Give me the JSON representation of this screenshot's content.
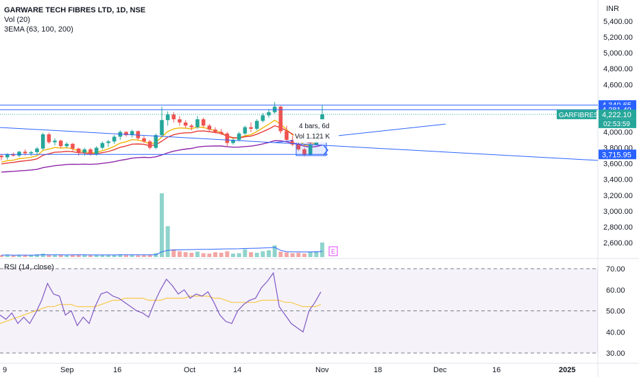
{
  "header": {
    "title": "GARWARE TECH FIBRES LTD, 1D, NSE",
    "vol_label": "Vol (20)",
    "ema_label": "3EMA (63, 100, 200)",
    "currency": "INR",
    "rsi_label": "RSI (14, close)"
  },
  "price_axis": {
    "ticks": [
      "5,400.00",
      "5,200.00",
      "5,000.00",
      "4,800.00",
      "4,600.00",
      "4,000.00",
      "3,800.00",
      "3,600.00",
      "3,400.00",
      "3,200.00",
      "3,000.00",
      "2,800.00",
      "2,600.00"
    ],
    "tick_values": [
      5400,
      5200,
      5000,
      4800,
      4600,
      4000,
      3800,
      3600,
      3400,
      3200,
      3000,
      2800,
      2600
    ]
  },
  "markers": {
    "price_high": {
      "text": "4,340.65",
      "value": 4340.65,
      "color": "#2962ff"
    },
    "price_mid": {
      "text": "4,281.40",
      "value": 4281.4,
      "color": "#2962ff"
    },
    "symbol": "GARFIBRES",
    "last": {
      "text": "4,222.10",
      "value": 4222.1,
      "color": "#26a69a"
    },
    "countdown": "02:53:59",
    "line_level": {
      "text": "3,715.95",
      "value": 3715.95,
      "color": "#2962ff"
    }
  },
  "tooltip": {
    "bars": "4 bars, 6d",
    "vol": "Vol 1.121 K"
  },
  "earnings_badge": "E",
  "rsi_axis": {
    "ticks": [
      "70.00",
      "60.00",
      "50.00",
      "40.00",
      "30.00"
    ],
    "tick_values": [
      70,
      60,
      50,
      40,
      30
    ]
  },
  "time_axis": {
    "labels": [
      "9",
      "Sep",
      "16",
      "Oct",
      "14",
      "Nov",
      "18",
      "Dec",
      "16",
      "2025"
    ]
  },
  "colors": {
    "up": "#26a69a",
    "down": "#ef5350",
    "ema63": "#f0b400",
    "ema100": "#e53935",
    "ema200": "#8e24aa",
    "rsi": "#7e57c2",
    "rsi_ma": "#f7c948",
    "trend": "#2962ff"
  },
  "chart_data": [
    {
      "type": "candlestick",
      "title": "GARWARE TECH FIBRES LTD, 1D, NSE",
      "series": [
        {
          "name": "price",
          "candles": [
            [
              3700,
              3720,
              3640,
              3680
            ],
            [
              3680,
              3730,
              3650,
              3720
            ],
            [
              3720,
              3740,
              3690,
              3700
            ],
            [
              3700,
              3760,
              3680,
              3750
            ],
            [
              3750,
              3780,
              3700,
              3730
            ],
            [
              3730,
              3760,
              3700,
              3745
            ],
            [
              3745,
              3810,
              3720,
              3790
            ],
            [
              3790,
              3990,
              3770,
              3970
            ],
            [
              3970,
              3990,
              3850,
              3870
            ],
            [
              3870,
              3920,
              3830,
              3890
            ],
            [
              3890,
              3900,
              3800,
              3820
            ],
            [
              3820,
              3870,
              3800,
              3850
            ],
            [
              3850,
              3860,
              3760,
              3790
            ],
            [
              3790,
              3800,
              3700,
              3740
            ],
            [
              3740,
              3800,
              3700,
              3780
            ],
            [
              3780,
              3800,
              3700,
              3720
            ],
            [
              3720,
              3820,
              3700,
              3800
            ],
            [
              3800,
              3880,
              3780,
              3860
            ],
            [
              3860,
              3900,
              3810,
              3880
            ],
            [
              3880,
              3960,
              3850,
              3940
            ],
            [
              3940,
              4020,
              3900,
              4000
            ],
            [
              4000,
              4010,
              3940,
              3960
            ],
            [
              3960,
              4030,
              3930,
              4010
            ],
            [
              4010,
              4020,
              3900,
              3920
            ],
            [
              3920,
              3950,
              3860,
              3880
            ],
            [
              3880,
              3900,
              3780,
              3800
            ],
            [
              3800,
              3980,
              3780,
              3960
            ],
            [
              3960,
              4320,
              3940,
              4150
            ],
            [
              4150,
              4260,
              4080,
              4220
            ],
            [
              4220,
              4250,
              4120,
              4160
            ],
            [
              4160,
              4200,
              4080,
              4120
            ],
            [
              4120,
              4150,
              4050,
              4080
            ],
            [
              4080,
              4100,
              4020,
              4060
            ],
            [
              4060,
              4200,
              4040,
              4160
            ],
            [
              4160,
              4180,
              4060,
              4080
            ],
            [
              4080,
              4100,
              4000,
              4030
            ],
            [
              4030,
              4060,
              3980,
              4000
            ],
            [
              4000,
              4040,
              3960,
              3980
            ],
            [
              3980,
              4000,
              3820,
              3860
            ],
            [
              3860,
              3920,
              3840,
              3900
            ],
            [
              3900,
              4000,
              3880,
              3980
            ],
            [
              3980,
              4080,
              3960,
              4060
            ],
            [
              4060,
              4120,
              4000,
              4040
            ],
            [
              4040,
              4160,
              4020,
              4140
            ],
            [
              4140,
              4240,
              4120,
              4210
            ],
            [
              4210,
              4290,
              4180,
              4250
            ],
            [
              4250,
              4380,
              4230,
              4320
            ],
            [
              4320,
              4330,
              3980,
              4010
            ],
            [
              4010,
              4080,
              3880,
              3900
            ],
            [
              3900,
              3950,
              3820,
              3840
            ],
            [
              3840,
              3880,
              3760,
              3780
            ],
            [
              3780,
              3800,
              3690,
              3710
            ],
            [
              3710,
              3860,
              3700,
              3840
            ],
            [
              3840,
              4080,
              3830,
              4050
            ],
            [
              4050,
              4340,
              4040,
              4222.1
            ]
          ]
        }
      ]
    },
    {
      "type": "bar",
      "title": "Vol (20)",
      "values": [
        10,
        12,
        8,
        11,
        10,
        9,
        14,
        18,
        12,
        10,
        11,
        9,
        12,
        13,
        10,
        9,
        12,
        11,
        10,
        12,
        14,
        10,
        11,
        9,
        10,
        12,
        20,
        330,
        160,
        40,
        30,
        25,
        22,
        28,
        20,
        18,
        25,
        22,
        30,
        18,
        20,
        40,
        25,
        22,
        30,
        35,
        60,
        28,
        24,
        20,
        22,
        18,
        25,
        30,
        75
      ]
    },
    {
      "type": "line",
      "title": "RSI (14, close)",
      "ylim": [
        25,
        75
      ],
      "series": [
        {
          "name": "RSI",
          "values": [
            48,
            46,
            49,
            44,
            47,
            44,
            49,
            55,
            63,
            58,
            57,
            48,
            50,
            43,
            47,
            44,
            52,
            58,
            59,
            57,
            56,
            54,
            52,
            50,
            49,
            47,
            54,
            60,
            65,
            62,
            58,
            60,
            56,
            58,
            57,
            59,
            54,
            48,
            45,
            44,
            50,
            53,
            55,
            56,
            61,
            64,
            68,
            52,
            48,
            44,
            42,
            40,
            50,
            54,
            59
          ]
        },
        {
          "name": "RSI-based MA",
          "values": [
            44,
            45,
            46,
            47,
            48,
            49,
            50,
            51,
            52,
            52,
            53,
            53,
            53,
            52,
            52,
            52,
            52,
            53,
            54,
            55,
            55,
            56,
            56,
            56,
            56,
            55,
            55,
            55,
            56,
            56,
            56,
            56,
            57,
            57,
            57,
            57,
            56,
            56,
            55,
            54,
            54,
            54,
            54,
            54,
            55,
            55,
            55,
            55,
            54,
            54,
            53,
            52,
            52,
            52,
            53
          ]
        }
      ]
    }
  ]
}
